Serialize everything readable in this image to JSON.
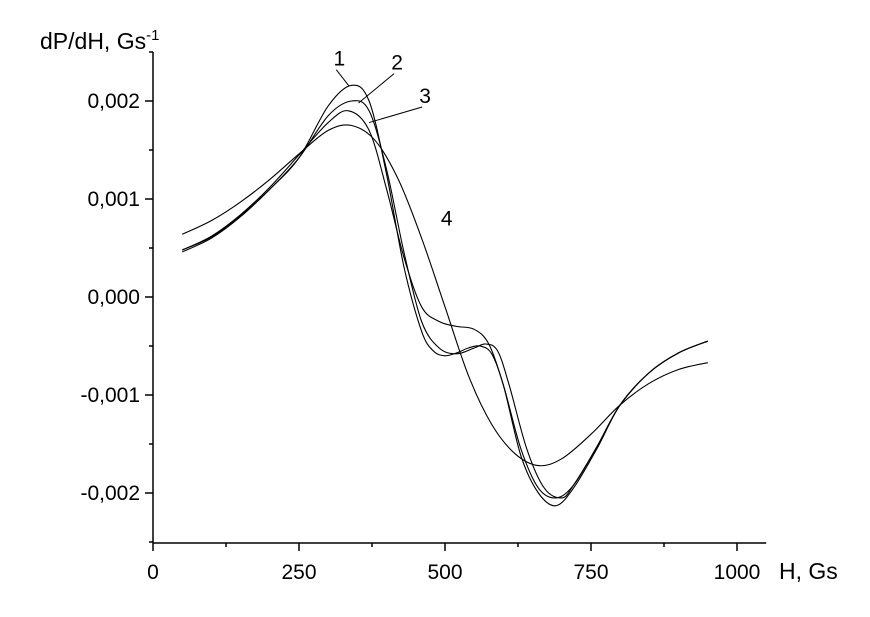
{
  "chart_data": {
    "type": "line",
    "ylabel": "dP/dH, Gs",
    "ylabel_exponent": "-1",
    "xlabel": "H, Gs",
    "xlim": [
      0,
      1050
    ],
    "ylim": [
      -0.0025,
      0.0025
    ],
    "x_ticks": [
      0,
      250,
      500,
      750,
      1000
    ],
    "x_tick_labels": [
      "0",
      "250",
      "500",
      "750",
      "1000"
    ],
    "y_ticks": [
      0.002,
      0.001,
      0.0,
      -0.001,
      -0.002
    ],
    "y_tick_labels": [
      "0,002",
      "0,001",
      "0,000",
      "-0,001",
      "-0,002"
    ],
    "grid": false,
    "series": [
      {
        "name": "1",
        "x": [
          50,
          100,
          150,
          200,
          250,
          300,
          340,
          370,
          400,
          430,
          460,
          480,
          500,
          520,
          540,
          560,
          580,
          600,
          630,
          660,
          690,
          720,
          760,
          800,
          850,
          900,
          950
        ],
        "y": [
          0.00046,
          0.0006,
          0.00082,
          0.0011,
          0.00142,
          0.00195,
          0.00216,
          0.002,
          0.00125,
          0.0003,
          -0.00035,
          -0.00055,
          -0.0006,
          -0.00057,
          -0.00052,
          -0.0005,
          -0.00058,
          -0.0009,
          -0.00162,
          -0.002,
          -0.00213,
          -0.00195,
          -0.00155,
          -0.0011,
          -0.00077,
          -0.00057,
          -0.00045
        ]
      },
      {
        "name": "2",
        "x": [
          50,
          100,
          150,
          200,
          250,
          300,
          340,
          370,
          400,
          430,
          460,
          490,
          520,
          550,
          570,
          590,
          610,
          640,
          670,
          700,
          720,
          760,
          800,
          850,
          900,
          950
        ],
        "y": [
          0.00048,
          0.00061,
          0.00083,
          0.0011,
          0.00142,
          0.00185,
          0.002,
          0.0019,
          0.0013,
          0.00045,
          -0.00025,
          -0.00052,
          -0.00058,
          -0.00052,
          -0.00048,
          -0.00055,
          -0.0009,
          -0.00155,
          -0.00195,
          -0.00205,
          -0.00192,
          -0.00153,
          -0.0011,
          -0.00077,
          -0.00057,
          -0.00045
        ]
      },
      {
        "name": "3",
        "x": [
          50,
          100,
          150,
          200,
          250,
          300,
          335,
          370,
          400,
          430,
          460,
          490,
          520,
          550,
          575,
          600,
          630,
          660,
          690,
          720,
          760,
          800,
          850,
          900,
          950
        ],
        "y": [
          0.00048,
          0.00062,
          0.00084,
          0.00112,
          0.00145,
          0.00178,
          0.0019,
          0.0017,
          0.0011,
          0.0004,
          -0.0001,
          -0.00025,
          -0.0003,
          -0.00033,
          -0.00048,
          -0.0009,
          -0.00155,
          -0.00195,
          -0.00205,
          -0.00192,
          -0.00153,
          -0.0011,
          -0.00077,
          -0.00057,
          -0.00045
        ]
      },
      {
        "name": "4",
        "x": [
          50,
          100,
          150,
          200,
          250,
          300,
          340,
          380,
          420,
          460,
          500,
          540,
          580,
          620,
          660,
          700,
          750,
          800,
          850,
          900,
          950
        ],
        "y": [
          0.00064,
          0.00078,
          0.00097,
          0.0012,
          0.00146,
          0.0017,
          0.00175,
          0.0016,
          0.0012,
          0.0006,
          -0.0001,
          -0.0008,
          -0.0013,
          -0.0016,
          -0.00172,
          -0.00165,
          -0.0014,
          -0.0011,
          -0.00088,
          -0.00074,
          -0.00067
        ]
      }
    ],
    "series_labels": [
      {
        "text": "1",
        "label_x": 319,
        "label_y": 0.00236,
        "anchor_x": 336,
        "anchor_y": 0.00215
      },
      {
        "text": "2",
        "label_x": 418,
        "label_y": 0.00232,
        "anchor_x": 352,
        "anchor_y": 0.00198
      },
      {
        "text": "3",
        "label_x": 466,
        "label_y": 0.00198,
        "anchor_x": 370,
        "anchor_y": 0.00178
      },
      {
        "text": "4",
        "label_x": 503,
        "label_y": 0.00073,
        "anchor_x": null,
        "anchor_y": null
      }
    ]
  }
}
